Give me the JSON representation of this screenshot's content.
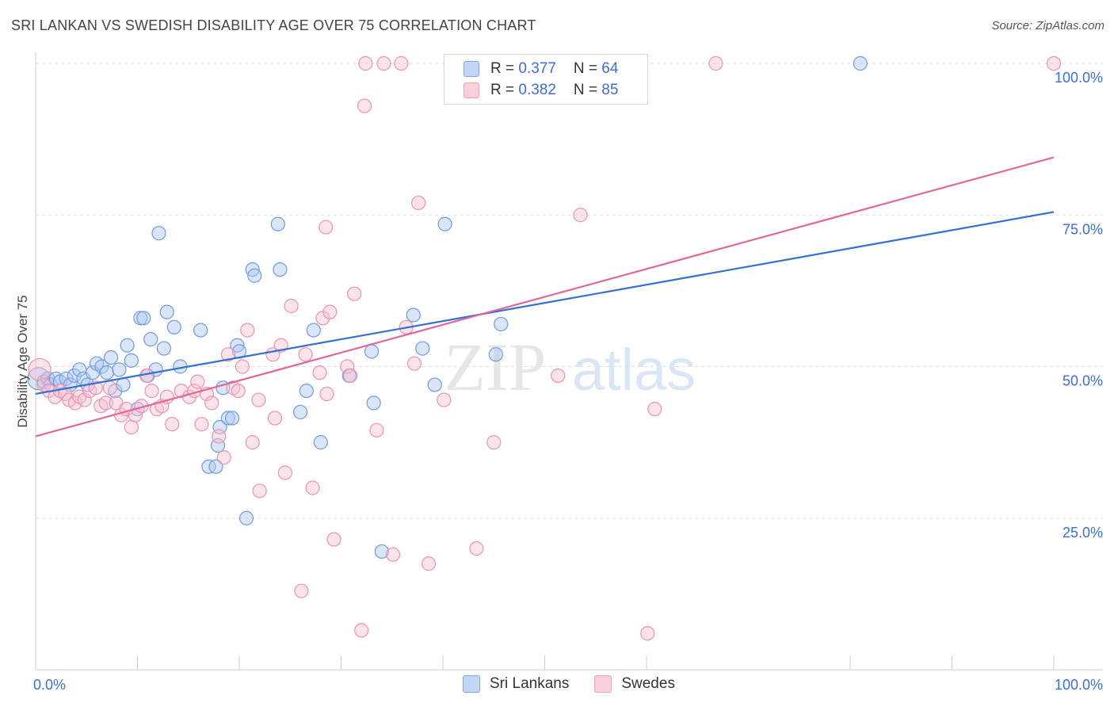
{
  "title": "SRI LANKAN VS SWEDISH DISABILITY AGE OVER 75 CORRELATION CHART",
  "source": "Source: ZipAtlas.com",
  "watermark": {
    "zip": "ZIP",
    "atlas": "atlas"
  },
  "legend": {
    "rows": [
      {
        "r_label": "R = ",
        "r_value": "0.377",
        "n_label": "N = ",
        "n_value": "64"
      },
      {
        "r_label": "R = ",
        "r_value": "0.382",
        "n_label": "N = ",
        "n_value": "85"
      }
    ]
  },
  "bottom_legend": {
    "series1": "Sri Lankans",
    "series2": "Swedes"
  },
  "colors": {
    "blue_fill": "#aec8f0",
    "blue_stroke": "#6f9be0",
    "blue_line": "#3470d0",
    "pink_fill": "#f7c0d0",
    "pink_stroke": "#ea94b0",
    "pink_line": "#e06898",
    "axis_label": "#3d6fd1",
    "grid": "#dddddd"
  },
  "chart_data": {
    "type": "scatter",
    "title": "SRI LANKAN VS SWEDISH DISABILITY AGE OVER 75 CORRELATION CHART",
    "xlabel": "",
    "ylabel": "Disability Age Over 75",
    "xlim": [
      0,
      100
    ],
    "ylim": [
      0,
      100
    ],
    "x_tick_labels": [
      "0.0%",
      "100.0%"
    ],
    "y_tick_labels": [
      "25.0%",
      "50.0%",
      "75.0%",
      "100.0%"
    ],
    "y_ticks": [
      25,
      50,
      75,
      100
    ],
    "grid": true,
    "legend_position": "top-center",
    "series": [
      {
        "name": "Sri Lankans",
        "color": "#6f9be0",
        "trend": {
          "x": [
            0,
            100
          ],
          "y": [
            45.5,
            75.5
          ]
        },
        "points": [
          [
            0.3,
            48
          ],
          [
            0.8,
            47.5
          ],
          [
            1.2,
            48
          ],
          [
            1.5,
            47
          ],
          [
            2.0,
            48
          ],
          [
            2.4,
            47.5
          ],
          [
            3.0,
            48
          ],
          [
            3.4,
            47
          ],
          [
            3.8,
            48.5
          ],
          [
            4.3,
            49.5
          ],
          [
            4.7,
            48
          ],
          [
            5.1,
            47
          ],
          [
            5.6,
            49
          ],
          [
            6.0,
            50.5
          ],
          [
            6.5,
            50
          ],
          [
            7.0,
            49
          ],
          [
            7.4,
            51.5
          ],
          [
            7.8,
            46
          ],
          [
            8.2,
            49.5
          ],
          [
            8.6,
            47
          ],
          [
            9.0,
            53.5
          ],
          [
            9.4,
            51
          ],
          [
            10.0,
            43
          ],
          [
            10.3,
            58
          ],
          [
            10.6,
            58
          ],
          [
            11.0,
            48.5
          ],
          [
            11.3,
            54.5
          ],
          [
            11.8,
            49.5
          ],
          [
            12.1,
            72
          ],
          [
            12.6,
            53
          ],
          [
            12.9,
            59
          ],
          [
            13.6,
            56.5
          ],
          [
            14.2,
            50
          ],
          [
            16.2,
            56
          ],
          [
            17.0,
            33.5
          ],
          [
            17.7,
            33.5
          ],
          [
            17.9,
            37
          ],
          [
            18.1,
            40
          ],
          [
            18.4,
            46.5
          ],
          [
            18.9,
            41.5
          ],
          [
            19.3,
            41.5
          ],
          [
            19.8,
            53.5
          ],
          [
            20.0,
            52.5
          ],
          [
            20.7,
            25
          ],
          [
            21.3,
            66
          ],
          [
            21.5,
            65
          ],
          [
            23.8,
            73.5
          ],
          [
            24.0,
            66
          ],
          [
            26.0,
            42.5
          ],
          [
            26.6,
            46
          ],
          [
            27.3,
            56
          ],
          [
            28.0,
            37.5
          ],
          [
            30.8,
            48.5
          ],
          [
            33.0,
            52.5
          ],
          [
            33.2,
            44
          ],
          [
            34.0,
            19.5
          ],
          [
            37.1,
            58.5
          ],
          [
            38.0,
            53
          ],
          [
            39.2,
            47
          ],
          [
            40.2,
            73.5
          ],
          [
            45.2,
            52
          ],
          [
            45.7,
            57
          ],
          [
            81.0,
            100
          ]
        ]
      },
      {
        "name": "Swedes",
        "color": "#ea94b0",
        "trend": {
          "x": [
            0,
            100
          ],
          "y": [
            38.5,
            84.5
          ]
        },
        "points": [
          [
            0.4,
            49.5
          ],
          [
            0.8,
            47
          ],
          [
            1.3,
            46
          ],
          [
            1.9,
            45
          ],
          [
            2.4,
            46
          ],
          [
            2.9,
            45.5
          ],
          [
            3.3,
            44.5
          ],
          [
            3.9,
            44
          ],
          [
            4.3,
            45
          ],
          [
            4.8,
            44.5
          ],
          [
            5.3,
            46
          ],
          [
            5.9,
            46.5
          ],
          [
            6.4,
            43.5
          ],
          [
            6.9,
            44
          ],
          [
            7.3,
            46.5
          ],
          [
            7.9,
            44
          ],
          [
            8.4,
            42
          ],
          [
            8.9,
            43
          ],
          [
            9.4,
            40
          ],
          [
            9.8,
            42
          ],
          [
            10.4,
            43.5
          ],
          [
            10.9,
            48.5
          ],
          [
            11.4,
            46
          ],
          [
            11.9,
            43
          ],
          [
            12.4,
            43.5
          ],
          [
            12.9,
            45
          ],
          [
            13.4,
            40.5
          ],
          [
            14.3,
            46
          ],
          [
            15.1,
            45
          ],
          [
            15.6,
            46
          ],
          [
            15.9,
            47.5
          ],
          [
            16.3,
            40.5
          ],
          [
            16.8,
            45.5
          ],
          [
            17.3,
            44
          ],
          [
            18.0,
            38.5
          ],
          [
            18.5,
            35
          ],
          [
            18.9,
            52
          ],
          [
            19.4,
            46.5
          ],
          [
            19.9,
            46
          ],
          [
            20.3,
            50
          ],
          [
            20.8,
            56
          ],
          [
            21.3,
            37.5
          ],
          [
            21.9,
            44.5
          ],
          [
            22.0,
            29.5
          ],
          [
            23.3,
            52
          ],
          [
            23.5,
            41.5
          ],
          [
            24.1,
            53.5
          ],
          [
            24.5,
            32.5
          ],
          [
            25.1,
            60
          ],
          [
            26.1,
            13
          ],
          [
            26.5,
            52
          ],
          [
            27.2,
            30
          ],
          [
            27.9,
            49
          ],
          [
            28.2,
            58
          ],
          [
            28.5,
            73
          ],
          [
            28.6,
            45.5
          ],
          [
            28.9,
            59
          ],
          [
            29.3,
            21.5
          ],
          [
            30.6,
            50
          ],
          [
            30.9,
            48.5
          ],
          [
            31.3,
            62
          ],
          [
            32.0,
            6.5
          ],
          [
            32.4,
            100
          ],
          [
            32.3,
            93
          ],
          [
            33.5,
            39.5
          ],
          [
            34.2,
            100
          ],
          [
            35.1,
            19
          ],
          [
            35.9,
            100
          ],
          [
            36.4,
            56.5
          ],
          [
            37.2,
            50.5
          ],
          [
            37.6,
            77
          ],
          [
            38.6,
            17.5
          ],
          [
            40.1,
            44.5
          ],
          [
            43.3,
            20
          ],
          [
            45.0,
            37.5
          ],
          [
            51.3,
            48.5
          ],
          [
            53.5,
            75
          ],
          [
            60.1,
            6
          ],
          [
            60.8,
            43
          ],
          [
            66.8,
            100
          ],
          [
            100.0,
            100
          ]
        ]
      }
    ]
  }
}
